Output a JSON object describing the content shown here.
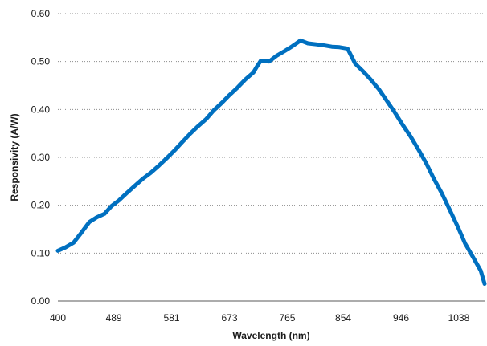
{
  "chart_data": {
    "type": "line",
    "xlabel": "Wavelength (nm)",
    "ylabel": "Responsivity (A/W)",
    "xlim": [
      400,
      1079
    ],
    "ylim": [
      0,
      0.6
    ],
    "grid": "horizontal dotted",
    "legend": "none",
    "x_tick_labels": [
      "400",
      "489",
      "581",
      "673",
      "765",
      "854",
      "946",
      "1038"
    ],
    "y_tick_labels": [
      "0.00",
      "0.10",
      "0.20",
      "0.30",
      "0.40",
      "0.50",
      "0.60"
    ],
    "line_color": "#0070c0",
    "series": [
      {
        "x": [
          400,
          412,
          425,
          437,
          450,
          462,
          474,
          485,
          497,
          510,
          522,
          535,
          548,
          561,
          573,
          586,
          598,
          611,
          623,
          636,
          648,
          661,
          673,
          686,
          698,
          711,
          717,
          723,
          736,
          748,
          761,
          773,
          786,
          798,
          811,
          823,
          836,
          848,
          861,
          873,
          886,
          898,
          911,
          923,
          936,
          948,
          961,
          973,
          986,
          998,
          1011,
          1023,
          1036,
          1048,
          1061,
          1073,
          1079
        ],
        "y": [
          0.105,
          0.112,
          0.122,
          0.142,
          0.165,
          0.175,
          0.182,
          0.198,
          0.21,
          0.226,
          0.24,
          0.255,
          0.268,
          0.283,
          0.298,
          0.315,
          0.332,
          0.35,
          0.365,
          0.38,
          0.398,
          0.414,
          0.43,
          0.446,
          0.462,
          0.477,
          0.49,
          0.502,
          0.5,
          0.512,
          0.522,
          0.532,
          0.544,
          0.538,
          0.536,
          0.534,
          0.531,
          0.53,
          0.527,
          0.496,
          0.479,
          0.462,
          0.442,
          0.419,
          0.394,
          0.369,
          0.344,
          0.318,
          0.288,
          0.256,
          0.225,
          0.192,
          0.156,
          0.12,
          0.091,
          0.063,
          0.036
        ]
      }
    ]
  }
}
